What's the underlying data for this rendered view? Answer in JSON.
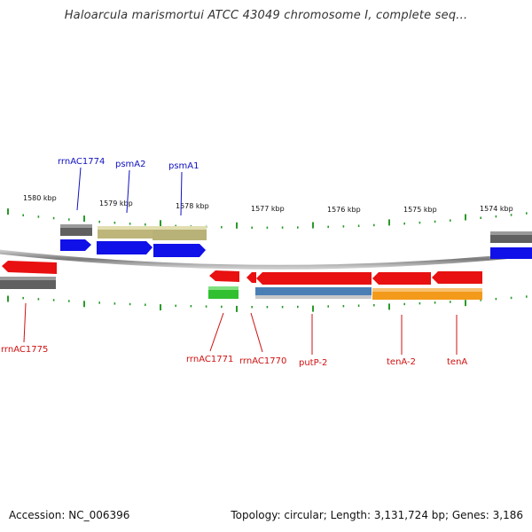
{
  "title": "Haloarcula marismortui ATCC 43049 chromosome I, complete seq...",
  "footer": {
    "accession": "Accession: NC_006396",
    "topology": "Topology: circular; Length: 3,131,724 bp; Genes: 3,186"
  },
  "scale": {
    "ticks_kbp": [
      "1580 kbp",
      "1579 kbp",
      "1578 kbp",
      "1577 kbp",
      "1576 kbp",
      "1575 kbp",
      "1574 kbp"
    ]
  },
  "colors": {
    "backbone": "#8a8a8a",
    "tick": "#2a9a2a",
    "rRNA": "#666666",
    "tRNA": "#30c030",
    "CDS_forward": "#1010e8",
    "CDS_reverse": "#e81010",
    "misc_olive": "#bdb57a",
    "misc_blue": "#4a7fb5",
    "misc_orange": "#f39a1a",
    "label_forward": "#1010c0",
    "label_reverse": "#d01010"
  },
  "labels_forward": [
    "rrnAC1774",
    "psmA2",
    "psmA1"
  ],
  "labels_reverse": [
    "rrnAC1775",
    "rrnAC1771",
    "rrnAC1770",
    "putP-2",
    "tenA-2",
    "tenA"
  ]
}
